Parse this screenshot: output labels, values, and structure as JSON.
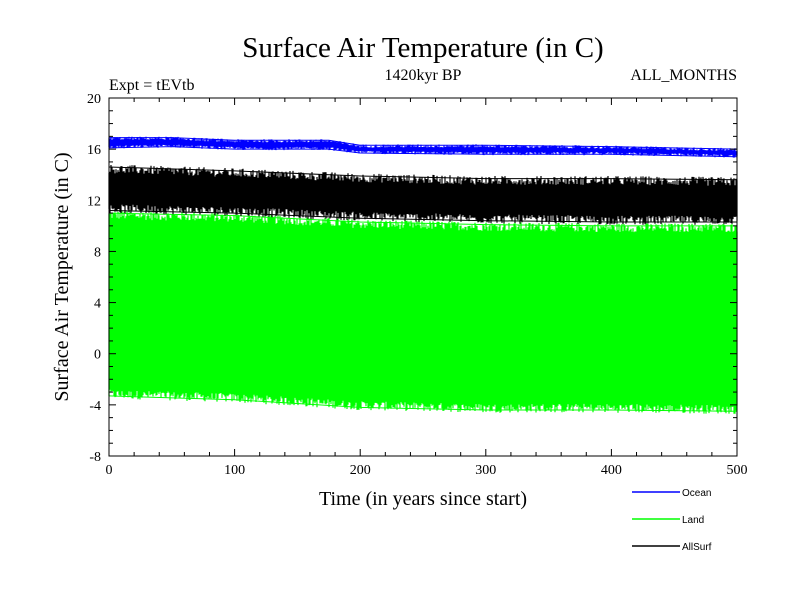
{
  "chart_data": {
    "type": "line",
    "title": "Surface Air Temperature (in C)",
    "subtitle": "1420kyr BP",
    "experiment_label": "Expt = tEVtb",
    "months_label": "ALL_MONTHS",
    "xlabel": "Time (in years since start)",
    "ylabel": "Surface Air Temperature (in C)",
    "xlim": [
      0,
      500
    ],
    "ylim": [
      -8,
      20
    ],
    "x_ticks": [
      0,
      100,
      200,
      300,
      400,
      500
    ],
    "y_ticks": [
      -8,
      -4,
      0,
      4,
      8,
      12,
      16,
      20
    ],
    "series": [
      {
        "name": "Land",
        "color": "#00ff00",
        "band": "seasonal",
        "upper_points": [
          [
            0,
            11.0
          ],
          [
            100,
            10.8
          ],
          [
            200,
            10.3
          ],
          [
            300,
            10.1
          ],
          [
            400,
            10.0
          ],
          [
            500,
            10.0
          ]
        ],
        "lower_points": [
          [
            0,
            -3.3
          ],
          [
            100,
            -3.6
          ],
          [
            200,
            -4.2
          ],
          [
            300,
            -4.4
          ],
          [
            400,
            -4.4
          ],
          [
            500,
            -4.5
          ]
        ]
      },
      {
        "name": "AllSurf",
        "color": "#000000",
        "band": "seasonal",
        "upper_points": [
          [
            0,
            14.6
          ],
          [
            100,
            14.3
          ],
          [
            200,
            13.9
          ],
          [
            300,
            13.7
          ],
          [
            400,
            13.7
          ],
          [
            500,
            13.6
          ]
        ],
        "lower_points": [
          [
            0,
            11.2
          ],
          [
            100,
            11.0
          ],
          [
            200,
            10.6
          ],
          [
            300,
            10.4
          ],
          [
            400,
            10.3
          ],
          [
            500,
            10.3
          ]
        ]
      },
      {
        "name": "Ocean",
        "color": "#0000ff",
        "band": "thin",
        "upper_points": [
          [
            0,
            16.9
          ],
          [
            50,
            16.9
          ],
          [
            100,
            16.7
          ],
          [
            175,
            16.7
          ],
          [
            200,
            16.3
          ],
          [
            300,
            16.3
          ],
          [
            400,
            16.2
          ],
          [
            500,
            16.0
          ]
        ],
        "lower_points": [
          [
            0,
            16.1
          ],
          [
            50,
            16.2
          ],
          [
            100,
            16.0
          ],
          [
            175,
            16.0
          ],
          [
            200,
            15.7
          ],
          [
            300,
            15.6
          ],
          [
            400,
            15.6
          ],
          [
            500,
            15.4
          ]
        ]
      }
    ],
    "legend": [
      {
        "name": "Ocean",
        "color": "#0000ff"
      },
      {
        "name": "Land",
        "color": "#00ff00"
      },
      {
        "name": "AllSurf",
        "color": "#000000"
      }
    ],
    "legend_position": "bottom-right"
  }
}
